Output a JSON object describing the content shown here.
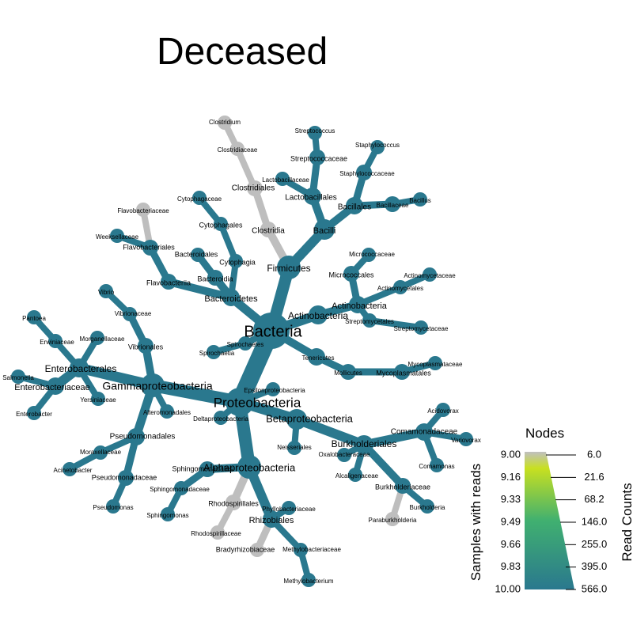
{
  "title": "Deceased",
  "legend": {
    "title": "Nodes",
    "left_axis_label": "Samples with reads",
    "right_axis_label": "Read Counts",
    "left_ticks": [
      "9.00",
      "9.16",
      "9.33",
      "9.49",
      "9.66",
      "9.83",
      "10.00"
    ],
    "right_ticks": [
      "6.0",
      "21.6",
      "68.2",
      "146.0",
      "255.0",
      "395.0",
      "566.0"
    ],
    "color_low": "#c0c0c0",
    "color_mid": "#c8e020",
    "color_high": "#2a788e"
  },
  "colors": {
    "main": "#2a788e",
    "grey": "#bebebe"
  },
  "nodes": [
    {
      "id": "bacteria",
      "label": "Bacteria"
    },
    {
      "id": "firmicutes",
      "label": "Firmicutes"
    },
    {
      "id": "bacilli",
      "label": "Bacilli"
    },
    {
      "id": "lactobacillales",
      "label": "Lactobacillales"
    },
    {
      "id": "streptococcaceae",
      "label": "Streptococcaceae"
    },
    {
      "id": "streptococcus",
      "label": "Streptococcus"
    },
    {
      "id": "lactobacillaceae",
      "label": "Lactobacillaceae"
    },
    {
      "id": "bacillales",
      "label": "Bacillales"
    },
    {
      "id": "staphylococcaceae",
      "label": "Staphylococcaceae"
    },
    {
      "id": "staphylococcus",
      "label": "Staphylococcus"
    },
    {
      "id": "bacillaceae",
      "label": "Bacillaceae"
    },
    {
      "id": "bacillus",
      "label": "Bacillus"
    },
    {
      "id": "clostridia",
      "label": "Clostridia"
    },
    {
      "id": "clostridiales",
      "label": "Clostridiales"
    },
    {
      "id": "clostridiaceae",
      "label": "Clostridiaceae"
    },
    {
      "id": "clostridium",
      "label": "Clostridium"
    },
    {
      "id": "actinobacteria_p",
      "label": "Actinobacteria"
    },
    {
      "id": "actinobacteria_c",
      "label": "Actinobacteria"
    },
    {
      "id": "micrococcales",
      "label": "Micrococcales"
    },
    {
      "id": "micrococcaceae",
      "label": "Micrococcaceae"
    },
    {
      "id": "actinomycetales",
      "label": "Actinomycetales"
    },
    {
      "id": "actinomycetaceae",
      "label": "Actinomycetaceae"
    },
    {
      "id": "streptomycetales",
      "label": "Streptomycetales"
    },
    {
      "id": "streptomycetaceae",
      "label": "Streptomycetaceae"
    },
    {
      "id": "tenericutes",
      "label": "Tenericutes"
    },
    {
      "id": "mollicutes",
      "label": "Mollicutes"
    },
    {
      "id": "mycoplasmatales",
      "label": "Mycoplasmatales"
    },
    {
      "id": "mycoplasmataceae",
      "label": "Mycoplasmataceae"
    },
    {
      "id": "spirochaetes",
      "label": "Spirochaetes"
    },
    {
      "id": "spirochaetia",
      "label": "Spirochaetia"
    },
    {
      "id": "bacteroidetes",
      "label": "Bacteroidetes"
    },
    {
      "id": "bacteroidia",
      "label": "Bacteroidia"
    },
    {
      "id": "bacteroidales",
      "label": "Bacteroidales"
    },
    {
      "id": "flavobacteriia",
      "label": "Flavobacteriia"
    },
    {
      "id": "flavobacteriales",
      "label": "Flavobacteriales"
    },
    {
      "id": "weeksellaceae",
      "label": "Weeksellaceae"
    },
    {
      "id": "flavobacteriaceae",
      "label": "Flavobacteriaceae"
    },
    {
      "id": "cytophagia",
      "label": "Cytophagia"
    },
    {
      "id": "cytophagales",
      "label": "Cytophagales"
    },
    {
      "id": "cytophagaceae",
      "label": "Cytophagaceae"
    },
    {
      "id": "proteobacteria",
      "label": "Proteobacteria"
    },
    {
      "id": "epsilonproteobacteria",
      "label": "Epsilonproteobacteria"
    },
    {
      "id": "deltaproteobacteria",
      "label": "Deltaproteobacteria"
    },
    {
      "id": "gammaproteobacteria",
      "label": "Gammaproteobacteria"
    },
    {
      "id": "vibrionales",
      "label": "Vibrionales"
    },
    {
      "id": "vibrionaceae",
      "label": "Vibrionaceae"
    },
    {
      "id": "vibrio",
      "label": "Vibrio"
    },
    {
      "id": "enterobacterales",
      "label": "Enterobacterales"
    },
    {
      "id": "enterobacteriaceae",
      "label": "Enterobacteriaceae"
    },
    {
      "id": "salmonella",
      "label": "Salmonella"
    },
    {
      "id": "enterobacter",
      "label": "Enterobacter"
    },
    {
      "id": "erwiniaceae",
      "label": "Erwiniaceae"
    },
    {
      "id": "pantoea",
      "label": "Pantoea"
    },
    {
      "id": "morganellaceae",
      "label": "Morganellaceae"
    },
    {
      "id": "yersiniaceae",
      "label": "Yersiniaceae"
    },
    {
      "id": "alteromonadales",
      "label": "Alteromonadales"
    },
    {
      "id": "pseudomonadales",
      "label": "Pseudomonadales"
    },
    {
      "id": "moraxellaceae",
      "label": "Moraxellaceae"
    },
    {
      "id": "acinetobacter",
      "label": "Acinetobacter"
    },
    {
      "id": "pseudomonadaceae",
      "label": "Pseudomonadaceae"
    },
    {
      "id": "pseudomonas",
      "label": "Pseudomonas"
    },
    {
      "id": "betaproteobacteria",
      "label": "Betaproteobacteria"
    },
    {
      "id": "neisseriales",
      "label": "Neisseriales"
    },
    {
      "id": "burkholderiales",
      "label": "Burkholderiales"
    },
    {
      "id": "comamonadaceae",
      "label": "Comamonadaceae"
    },
    {
      "id": "acidovorax",
      "label": "Acidovorax"
    },
    {
      "id": "variovorax",
      "label": "Variovorax"
    },
    {
      "id": "comamonas",
      "label": "Comamonas"
    },
    {
      "id": "oxalobacteraceae",
      "label": "Oxalobacteraceae"
    },
    {
      "id": "alcaligenaceae",
      "label": "Alcaligenaceae"
    },
    {
      "id": "burkholderiaceae",
      "label": "Burkholderiaceae"
    },
    {
      "id": "burkholderia",
      "label": "Burkholderia"
    },
    {
      "id": "paraburkholderia",
      "label": "Paraburkholderia"
    },
    {
      "id": "alphaproteobacteria",
      "label": "Alphaproteobacteria"
    },
    {
      "id": "sphingomonadales",
      "label": "Sphingomonadales"
    },
    {
      "id": "sphingomonadaceae",
      "label": "Sphingomonadaceae"
    },
    {
      "id": "sphingomonas",
      "label": "Sphingomonas"
    },
    {
      "id": "rhodospirillales",
      "label": "Rhodospirillales"
    },
    {
      "id": "rhodospirillaceae",
      "label": "Rhodospirillaceae"
    },
    {
      "id": "rhizobiales",
      "label": "Rhizobiales"
    },
    {
      "id": "phyllobacteriaceae",
      "label": "Phyllobacteriaceae"
    },
    {
      "id": "bradyrhizobiaceae",
      "label": "Bradyrhizobiaceae"
    },
    {
      "id": "methylobacteriaceae",
      "label": "Methylobacteriaceae"
    },
    {
      "id": "methylobacterium",
      "label": "Methylobacterium"
    }
  ]
}
